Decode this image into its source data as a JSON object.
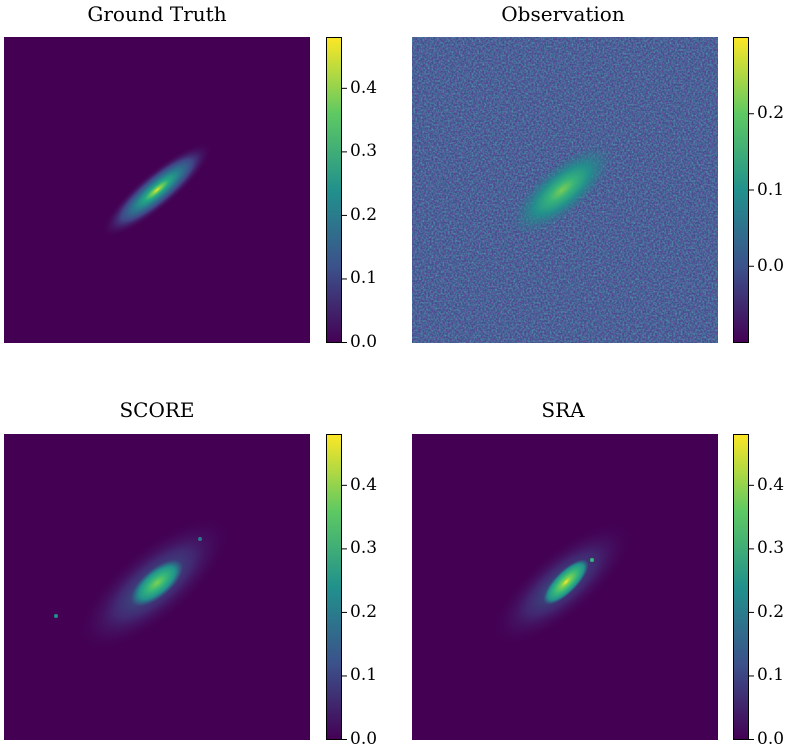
{
  "chart_data": [
    {
      "type": "heatmap",
      "title": "Ground Truth",
      "colormap": "viridis",
      "colorbar": {
        "min": 0.0,
        "max": 0.48,
        "ticks": [
          0.0,
          0.1,
          0.2,
          0.3,
          0.4
        ],
        "tick_labels": [
          "0.0",
          "0.1",
          "0.2",
          "0.3",
          "0.4"
        ]
      },
      "peak_value": 0.48,
      "grid": false,
      "axes_visible": false
    },
    {
      "type": "heatmap",
      "title": "Observation",
      "colormap": "viridis",
      "colorbar": {
        "min": -0.1,
        "max": 0.3,
        "ticks": [
          0.0,
          0.1,
          0.2
        ],
        "tick_labels": [
          "0.0",
          "0.1",
          "0.2"
        ]
      },
      "peak_value": 0.3,
      "grid": false,
      "axes_visible": false
    },
    {
      "type": "heatmap",
      "title": "SCORE",
      "colormap": "viridis",
      "colorbar": {
        "min": 0.0,
        "max": 0.48,
        "ticks": [
          0.0,
          0.1,
          0.2,
          0.3,
          0.4
        ],
        "tick_labels": [
          "0.0",
          "0.1",
          "0.2",
          "0.3",
          "0.4"
        ]
      },
      "peak_value": 0.42,
      "grid": false,
      "axes_visible": false
    },
    {
      "type": "heatmap",
      "title": "SRA",
      "colormap": "viridis",
      "colorbar": {
        "min": 0.0,
        "max": 0.48,
        "ticks": [
          0.0,
          0.1,
          0.2,
          0.3,
          0.4
        ],
        "tick_labels": [
          "0.0",
          "0.1",
          "0.2",
          "0.3",
          "0.4"
        ]
      },
      "peak_value": 0.46,
      "grid": false,
      "axes_visible": false
    }
  ]
}
